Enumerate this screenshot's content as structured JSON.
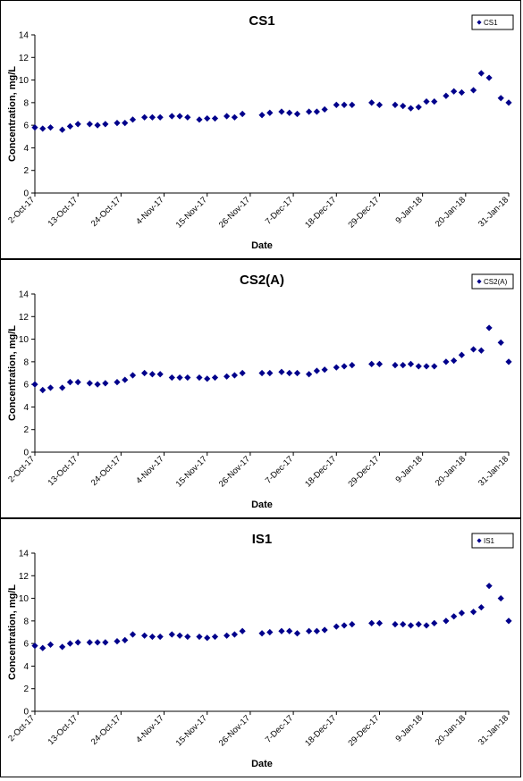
{
  "chart_data": [
    {
      "type": "scatter",
      "title": "CS1",
      "xlabel": "Date",
      "ylabel": "Concentration, mg/L",
      "ylim": [
        0,
        14
      ],
      "yticks": [
        0,
        2,
        4,
        6,
        8,
        10,
        12,
        14
      ],
      "xlim": [
        "2017-10-02",
        "2018-01-31"
      ],
      "xticks": [
        "2-Oct-17",
        "13-Oct-17",
        "24-Oct-17",
        "4-Nov-17",
        "15-Nov-17",
        "26-Nov-17",
        "7-Dec-17",
        "18-Dec-17",
        "29-Dec-17",
        "9-Jan-18",
        "20-Jan-18",
        "31-Jan-18"
      ],
      "grid": false,
      "legend": "top-right",
      "series": [
        {
          "name": "CS1",
          "color": "#00008B",
          "marker": "diamond",
          "x": [
            "2017-10-02",
            "2017-10-04",
            "2017-10-06",
            "2017-10-09",
            "2017-10-11",
            "2017-10-13",
            "2017-10-16",
            "2017-10-18",
            "2017-10-20",
            "2017-10-23",
            "2017-10-25",
            "2017-10-27",
            "2017-10-30",
            "2017-11-01",
            "2017-11-03",
            "2017-11-06",
            "2017-11-08",
            "2017-11-10",
            "2017-11-13",
            "2017-11-15",
            "2017-11-17",
            "2017-11-20",
            "2017-11-22",
            "2017-11-24",
            "2017-11-29",
            "2017-12-01",
            "2017-12-04",
            "2017-12-06",
            "2017-12-08",
            "2017-12-11",
            "2017-12-13",
            "2017-12-15",
            "2017-12-18",
            "2017-12-20",
            "2017-12-22",
            "2017-12-27",
            "2017-12-29",
            "2018-01-02",
            "2018-01-04",
            "2018-01-06",
            "2018-01-08",
            "2018-01-10",
            "2018-01-12",
            "2018-01-15",
            "2018-01-17",
            "2018-01-19",
            "2018-01-22",
            "2018-01-24",
            "2018-01-26",
            "2018-01-29",
            "2018-01-31"
          ],
          "y": [
            5.8,
            5.7,
            5.8,
            5.6,
            5.9,
            6.1,
            6.1,
            6.0,
            6.1,
            6.2,
            6.2,
            6.5,
            6.7,
            6.7,
            6.7,
            6.8,
            6.8,
            6.7,
            6.5,
            6.6,
            6.6,
            6.8,
            6.7,
            7.0,
            6.9,
            7.1,
            7.2,
            7.1,
            7.0,
            7.2,
            7.2,
            7.4,
            7.8,
            7.8,
            7.8,
            8.0,
            7.8,
            7.8,
            7.7,
            7.5,
            7.6,
            8.1,
            8.1,
            8.6,
            9.0,
            8.9,
            9.1,
            10.6,
            10.2,
            8.4,
            8.0
          ]
        }
      ]
    },
    {
      "type": "scatter",
      "title": "CS2(A)",
      "xlabel": "Date",
      "ylabel": "Concentration, mg/L",
      "ylim": [
        0,
        14
      ],
      "yticks": [
        0,
        2,
        4,
        6,
        8,
        10,
        12,
        14
      ],
      "xlim": [
        "2017-10-02",
        "2018-01-31"
      ],
      "xticks": [
        "2-Oct-17",
        "13-Oct-17",
        "24-Oct-17",
        "4-Nov-17",
        "15-Nov-17",
        "26-Nov-17",
        "7-Dec-17",
        "18-Dec-17",
        "29-Dec-17",
        "9-Jan-18",
        "20-Jan-18",
        "31-Jan-18"
      ],
      "grid": false,
      "legend": "top-right",
      "series": [
        {
          "name": "CS2(A)",
          "color": "#00008B",
          "marker": "diamond",
          "x": [
            "2017-10-02",
            "2017-10-04",
            "2017-10-06",
            "2017-10-09",
            "2017-10-11",
            "2017-10-13",
            "2017-10-16",
            "2017-10-18",
            "2017-10-20",
            "2017-10-23",
            "2017-10-25",
            "2017-10-27",
            "2017-10-30",
            "2017-11-01",
            "2017-11-03",
            "2017-11-06",
            "2017-11-08",
            "2017-11-10",
            "2017-11-13",
            "2017-11-15",
            "2017-11-17",
            "2017-11-20",
            "2017-11-22",
            "2017-11-24",
            "2017-11-29",
            "2017-12-01",
            "2017-12-04",
            "2017-12-06",
            "2017-12-08",
            "2017-12-11",
            "2017-12-13",
            "2017-12-15",
            "2017-12-18",
            "2017-12-20",
            "2017-12-22",
            "2017-12-27",
            "2017-12-29",
            "2018-01-02",
            "2018-01-04",
            "2018-01-06",
            "2018-01-08",
            "2018-01-10",
            "2018-01-12",
            "2018-01-15",
            "2018-01-17",
            "2018-01-19",
            "2018-01-22",
            "2018-01-24",
            "2018-01-26",
            "2018-01-29",
            "2018-01-31"
          ],
          "y": [
            6.0,
            5.5,
            5.7,
            5.7,
            6.2,
            6.2,
            6.1,
            6.0,
            6.1,
            6.2,
            6.4,
            6.8,
            7.0,
            6.9,
            6.9,
            6.6,
            6.6,
            6.6,
            6.6,
            6.5,
            6.6,
            6.7,
            6.8,
            7.0,
            7.0,
            7.0,
            7.1,
            7.0,
            7.0,
            6.9,
            7.2,
            7.3,
            7.5,
            7.6,
            7.7,
            7.8,
            7.8,
            7.7,
            7.7,
            7.8,
            7.6,
            7.6,
            7.6,
            8.0,
            8.1,
            8.6,
            9.1,
            9.0,
            11.0,
            9.7,
            8.0
          ]
        }
      ]
    },
    {
      "type": "scatter",
      "title": "IS1",
      "xlabel": "Date",
      "ylabel": "Concentration, mg/L",
      "ylim": [
        0,
        14
      ],
      "yticks": [
        0,
        2,
        4,
        6,
        8,
        10,
        12,
        14
      ],
      "xlim": [
        "2017-10-02",
        "2018-01-31"
      ],
      "xticks": [
        "2-Oct-17",
        "13-Oct-17",
        "24-Oct-17",
        "4-Nov-17",
        "15-Nov-17",
        "26-Nov-17",
        "7-Dec-17",
        "18-Dec-17",
        "29-Dec-17",
        "9-Jan-18",
        "20-Jan-18",
        "31-Jan-18"
      ],
      "grid": false,
      "legend": "top-right",
      "series": [
        {
          "name": "IS1",
          "color": "#00008B",
          "marker": "diamond",
          "x": [
            "2017-10-02",
            "2017-10-04",
            "2017-10-06",
            "2017-10-09",
            "2017-10-11",
            "2017-10-13",
            "2017-10-16",
            "2017-10-18",
            "2017-10-20",
            "2017-10-23",
            "2017-10-25",
            "2017-10-27",
            "2017-10-30",
            "2017-11-01",
            "2017-11-03",
            "2017-11-06",
            "2017-11-08",
            "2017-11-10",
            "2017-11-13",
            "2017-11-15",
            "2017-11-17",
            "2017-11-20",
            "2017-11-22",
            "2017-11-24",
            "2017-11-29",
            "2017-12-01",
            "2017-12-04",
            "2017-12-06",
            "2017-12-08",
            "2017-12-11",
            "2017-12-13",
            "2017-12-15",
            "2017-12-18",
            "2017-12-20",
            "2017-12-22",
            "2017-12-27",
            "2017-12-29",
            "2018-01-02",
            "2018-01-04",
            "2018-01-06",
            "2018-01-08",
            "2018-01-10",
            "2018-01-12",
            "2018-01-15",
            "2018-01-17",
            "2018-01-19",
            "2018-01-22",
            "2018-01-24",
            "2018-01-26",
            "2018-01-29",
            "2018-01-31"
          ],
          "y": [
            5.8,
            5.6,
            5.9,
            5.7,
            6.0,
            6.1,
            6.1,
            6.1,
            6.1,
            6.2,
            6.3,
            6.8,
            6.7,
            6.6,
            6.6,
            6.8,
            6.7,
            6.6,
            6.6,
            6.5,
            6.6,
            6.7,
            6.8,
            7.1,
            6.9,
            7.0,
            7.1,
            7.1,
            6.9,
            7.1,
            7.1,
            7.2,
            7.5,
            7.6,
            7.7,
            7.8,
            7.8,
            7.7,
            7.7,
            7.6,
            7.7,
            7.6,
            7.8,
            8.0,
            8.4,
            8.7,
            8.8,
            9.2,
            11.1,
            10.0,
            8.0
          ]
        }
      ]
    }
  ]
}
